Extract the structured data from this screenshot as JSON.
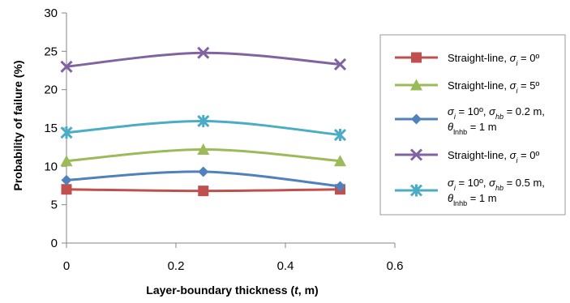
{
  "chart_data": {
    "type": "line",
    "title": "",
    "xlabel_parts": [
      {
        "text": "Layer-boundary thickness (",
        "italic": false
      },
      {
        "text": "t",
        "italic": true
      },
      {
        "text": ", m)",
        "italic": false
      }
    ],
    "ylabel": "Probability of failure (%)",
    "xlim": [
      0,
      0.6
    ],
    "ylim": [
      0,
      30
    ],
    "xticks": [
      0,
      0.2,
      0.4,
      0.6
    ],
    "xtick_labels": [
      "0",
      "0.2",
      "0.4",
      "0.6"
    ],
    "yticks": [
      0,
      5,
      10,
      15,
      20,
      25,
      30
    ],
    "ytick_labels": [
      "0",
      "5",
      "10",
      "15",
      "20",
      "25",
      "30"
    ],
    "grid": false,
    "legend_position": "right",
    "x": [
      0,
      0.25,
      0.5
    ],
    "series": [
      {
        "color": "#C0504D",
        "marker": "square",
        "values": [
          7.0,
          6.8,
          7.0
        ],
        "legend_lines": [
          [
            {
              "t": "Straight-line, "
            },
            {
              "t": "σ",
              "i": true
            },
            {
              "t": "i",
              "i": true,
              "sub": true
            },
            {
              "t": " = 0º"
            }
          ]
        ]
      },
      {
        "color": "#9BBB59",
        "marker": "triangle",
        "values": [
          10.7,
          12.2,
          10.7
        ],
        "legend_lines": [
          [
            {
              "t": "Straight-line, "
            },
            {
              "t": "σ",
              "i": true
            },
            {
              "t": "i",
              "i": true,
              "sub": true
            },
            {
              "t": " = 5º"
            }
          ]
        ]
      },
      {
        "color": "#4F81BD",
        "marker": "diamond",
        "values": [
          8.2,
          9.3,
          7.4
        ],
        "legend_lines": [
          [
            {
              "t": "σ",
              "i": true
            },
            {
              "t": "i",
              "i": true,
              "sub": true
            },
            {
              "t": " = 10º, "
            },
            {
              "t": "σ",
              "i": true
            },
            {
              "t": "hb",
              "i": true,
              "sub": true
            },
            {
              "t": " = 0.2 m,"
            }
          ],
          [
            {
              "t": "θ",
              "i": true
            },
            {
              "t": "lnhb",
              "sub": true
            },
            {
              "t": " = 1 m"
            }
          ]
        ]
      },
      {
        "color": "#8064A2",
        "marker": "x",
        "values": [
          23.0,
          24.8,
          23.3
        ],
        "legend_lines": [
          [
            {
              "t": "Straight-line, "
            },
            {
              "t": "σ",
              "i": true
            },
            {
              "t": "i",
              "i": true,
              "sub": true
            },
            {
              "t": " = 0º"
            }
          ]
        ]
      },
      {
        "color": "#4BACC6",
        "marker": "star",
        "values": [
          14.4,
          15.9,
          14.1
        ],
        "legend_lines": [
          [
            {
              "t": "σ",
              "i": true
            },
            {
              "t": "i",
              "i": true,
              "sub": true
            },
            {
              "t": " = 10º, "
            },
            {
              "t": "σ",
              "i": true
            },
            {
              "t": "hb",
              "i": true,
              "sub": true
            },
            {
              "t": " = 0.5 m,"
            }
          ],
          [
            {
              "t": "θ",
              "i": true
            },
            {
              "t": "lnhb",
              "sub": true
            },
            {
              "t": " = 1 m"
            }
          ]
        ]
      }
    ]
  }
}
